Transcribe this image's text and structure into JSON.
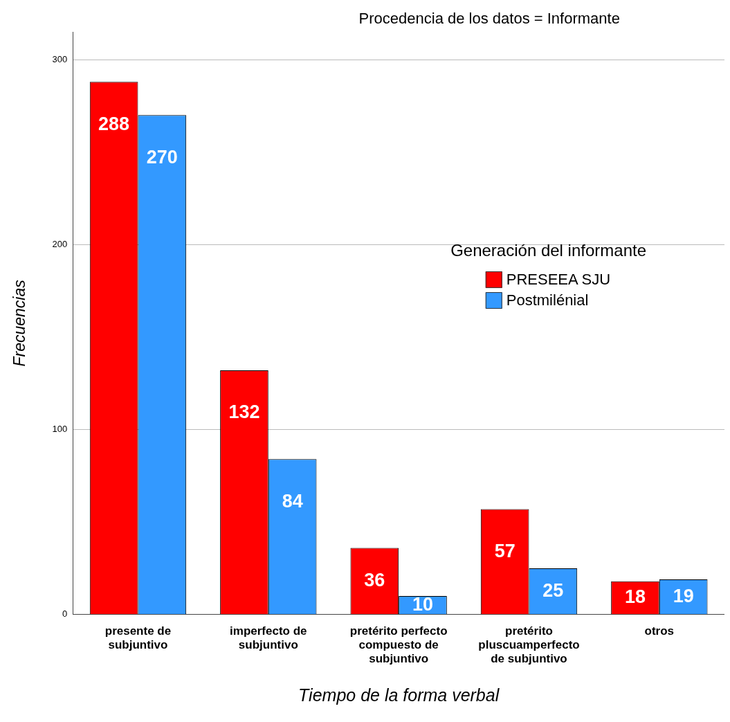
{
  "chart_data": {
    "type": "bar",
    "title": "Procedencia de los datos = Informante",
    "xlabel": "Tiempo de la forma verbal",
    "ylabel": "Frecuencias",
    "legend_title": "Generación del informante",
    "categories": [
      "presente de subjuntivo",
      "imperfecto de subjuntivo",
      "pretérito perfecto compuesto de subjuntivo",
      "pretérito pluscuamperfecto de subjuntivo",
      "otros"
    ],
    "series": [
      {
        "name": "PRESEEA SJU",
        "color": "#ff0000",
        "values": [
          288,
          132,
          36,
          57,
          18
        ]
      },
      {
        "name": "Postmilénial",
        "color": "#3399ff",
        "values": [
          270,
          84,
          10,
          25,
          19
        ]
      }
    ],
    "ylim": [
      0,
      315
    ],
    "yticks": [
      0,
      100,
      200,
      300
    ],
    "grid": "y",
    "legend": "right",
    "data_labels": true
  }
}
